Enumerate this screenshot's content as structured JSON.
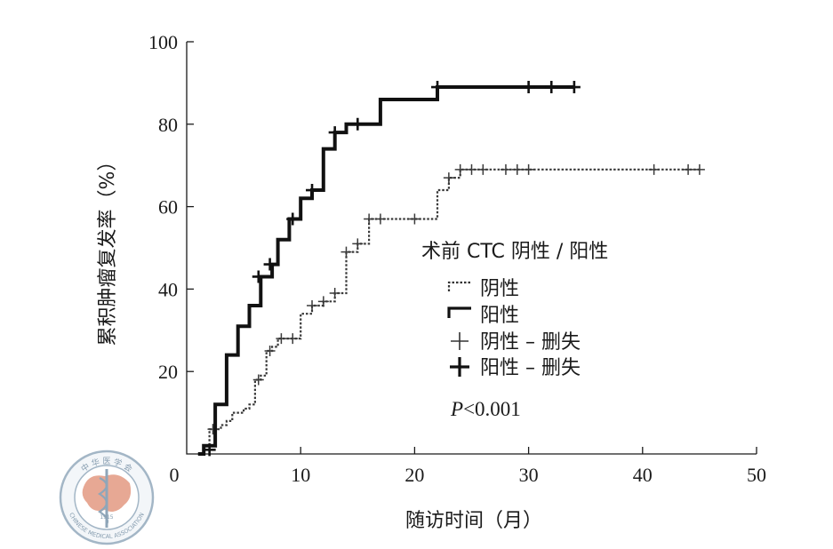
{
  "chart_data": {
    "type": "line",
    "step": true,
    "xlabel": "随访时间（月）",
    "ylabel": "累积肿瘤复发率（%）",
    "xlim": [
      0,
      50
    ],
    "ylim": [
      0,
      100
    ],
    "xticks": [
      0,
      10,
      20,
      30,
      40,
      50
    ],
    "yticks": [
      20,
      40,
      60,
      80,
      100
    ],
    "grid": false,
    "legend": {
      "title": "术前 CTC 阴性 / 阳性",
      "placement": "center-right",
      "entries": [
        "阴性",
        "阳性",
        "阴性 – 删失",
        "阳性 – 删失"
      ]
    },
    "annotation": {
      "italic": "P",
      "text": "<0.001"
    },
    "series": [
      {
        "name": "阴性",
        "style": "dotted",
        "points": [
          [
            1,
            0
          ],
          [
            1.5,
            0
          ],
          [
            1.5,
            1
          ],
          [
            2,
            1
          ],
          [
            2,
            6
          ],
          [
            3,
            6
          ],
          [
            3,
            7
          ],
          [
            3.5,
            7
          ],
          [
            3.5,
            8
          ],
          [
            4,
            8
          ],
          [
            4,
            10
          ],
          [
            5,
            10
          ],
          [
            5,
            11
          ],
          [
            5.5,
            11
          ],
          [
            5.5,
            12
          ],
          [
            6,
            12
          ],
          [
            6,
            18
          ],
          [
            6.5,
            18
          ],
          [
            6.5,
            19
          ],
          [
            7,
            19
          ],
          [
            7,
            25
          ],
          [
            7.5,
            25
          ],
          [
            7.5,
            26
          ],
          [
            8,
            26
          ],
          [
            8,
            28
          ],
          [
            10,
            28
          ],
          [
            10,
            34
          ],
          [
            11,
            34
          ],
          [
            11,
            36
          ],
          [
            12,
            36
          ],
          [
            12,
            37
          ],
          [
            13,
            37
          ],
          [
            13,
            39
          ],
          [
            14,
            39
          ],
          [
            14,
            49
          ],
          [
            15,
            49
          ],
          [
            15,
            51
          ],
          [
            16,
            51
          ],
          [
            16,
            57
          ],
          [
            22,
            57
          ],
          [
            22,
            64
          ],
          [
            23,
            64
          ],
          [
            23,
            67
          ],
          [
            24,
            67
          ],
          [
            24,
            69
          ],
          [
            45,
            69
          ]
        ],
        "censored": [
          [
            2.3,
            6
          ],
          [
            6.3,
            18
          ],
          [
            7.3,
            25
          ],
          [
            8.3,
            28
          ],
          [
            9.3,
            28
          ],
          [
            11,
            36
          ],
          [
            12,
            37
          ],
          [
            13,
            39
          ],
          [
            14,
            49
          ],
          [
            15,
            51
          ],
          [
            16,
            57
          ],
          [
            17,
            57
          ],
          [
            20,
            57
          ],
          [
            23,
            67
          ],
          [
            24,
            69
          ],
          [
            25,
            69
          ],
          [
            26,
            69
          ],
          [
            28,
            69
          ],
          [
            29,
            69
          ],
          [
            30,
            69
          ],
          [
            41,
            69
          ],
          [
            44,
            69
          ],
          [
            45,
            69
          ]
        ]
      },
      {
        "name": "阳性",
        "style": "solid",
        "points": [
          [
            1,
            0
          ],
          [
            1.5,
            0
          ],
          [
            1.5,
            2
          ],
          [
            2.5,
            2
          ],
          [
            2.5,
            12
          ],
          [
            3.5,
            12
          ],
          [
            3.5,
            24
          ],
          [
            4.5,
            24
          ],
          [
            4.5,
            31
          ],
          [
            5.5,
            31
          ],
          [
            5.5,
            36
          ],
          [
            6.5,
            36
          ],
          [
            6.5,
            43
          ],
          [
            7.5,
            43
          ],
          [
            7.5,
            46
          ],
          [
            8,
            46
          ],
          [
            8,
            52
          ],
          [
            9,
            52
          ],
          [
            9,
            57
          ],
          [
            10,
            57
          ],
          [
            10,
            62
          ],
          [
            11,
            62
          ],
          [
            11,
            64
          ],
          [
            12,
            64
          ],
          [
            12,
            74
          ],
          [
            13,
            74
          ],
          [
            13,
            78
          ],
          [
            14,
            78
          ],
          [
            14,
            80
          ],
          [
            17,
            80
          ],
          [
            17,
            86
          ],
          [
            22,
            86
          ],
          [
            22,
            89
          ],
          [
            34,
            89
          ]
        ],
        "censored": [
          [
            2,
            1
          ],
          [
            6.3,
            43
          ],
          [
            7.3,
            46
          ],
          [
            9.3,
            57
          ],
          [
            11,
            64
          ],
          [
            13,
            78
          ],
          [
            15,
            80
          ],
          [
            22,
            89
          ],
          [
            30,
            89
          ],
          [
            32,
            89
          ],
          [
            34,
            89
          ]
        ]
      }
    ]
  },
  "watermark": {
    "kind": "logo",
    "text_top": "中 华 医 学 会",
    "text_bottom": "CHINESE MEDICAL ASSOCIATION",
    "year": "1915",
    "colors": {
      "ring": "#9fb3c4",
      "map": "#e6a48f",
      "staff": "#8aa2b6"
    }
  }
}
